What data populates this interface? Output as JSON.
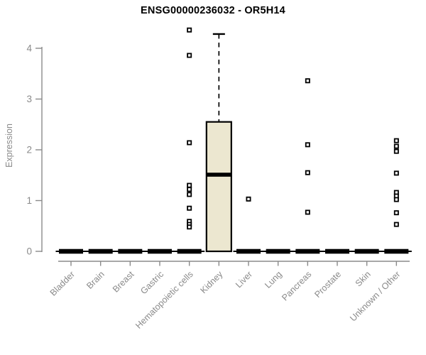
{
  "chart_data": {
    "type": "boxplot",
    "title": "ENSG00000236032 - OR5H14",
    "ylabel": "Expression",
    "xlabel": "",
    "ylim": [
      0,
      4
    ],
    "yticks": [
      0,
      1,
      2,
      3,
      4
    ],
    "grid": false,
    "legend": null,
    "categories": [
      "Bladder",
      "Brain",
      "Breast",
      "Gastric",
      "Hematopoietic cells",
      "Kidney",
      "Liver",
      "Lung",
      "Pancreas",
      "Prostate",
      "Skin",
      "Unknown / Other"
    ],
    "series": [
      {
        "category": "Bladder",
        "low": 0,
        "q1": 0,
        "median": 0,
        "q3": 0,
        "high": 0,
        "outliers": []
      },
      {
        "category": "Brain",
        "low": 0,
        "q1": 0,
        "median": 0,
        "q3": 0,
        "high": 0,
        "outliers": []
      },
      {
        "category": "Breast",
        "low": 0,
        "q1": 0,
        "median": 0,
        "q3": 0,
        "high": 0,
        "outliers": []
      },
      {
        "category": "Gastric",
        "low": 0,
        "q1": 0,
        "median": 0,
        "q3": 0,
        "high": 0,
        "outliers": []
      },
      {
        "category": "Hematopoietic cells",
        "low": 0,
        "q1": 0,
        "median": 0,
        "q3": 0,
        "high": 0,
        "outliers": [
          4.36,
          3.86,
          2.14,
          1.3,
          1.22,
          1.12,
          0.85,
          0.59,
          0.53,
          0.48
        ]
      },
      {
        "category": "Kidney",
        "low": 0,
        "q1": 0,
        "median": 1.51,
        "q3": 2.55,
        "high": 4.28,
        "outliers": []
      },
      {
        "category": "Liver",
        "low": 0,
        "q1": 0,
        "median": 0,
        "q3": 0,
        "high": 0,
        "outliers": [
          1.03
        ]
      },
      {
        "category": "Lung",
        "low": 0,
        "q1": 0,
        "median": 0,
        "q3": 0,
        "high": 0,
        "outliers": []
      },
      {
        "category": "Pancreas",
        "low": 0,
        "q1": 0,
        "median": 0,
        "q3": 0,
        "high": 0,
        "outliers": [
          3.36,
          2.1,
          1.55,
          0.77
        ]
      },
      {
        "category": "Prostate",
        "low": 0,
        "q1": 0,
        "median": 0,
        "q3": 0,
        "high": 0,
        "outliers": []
      },
      {
        "category": "Skin",
        "low": 0,
        "q1": 0,
        "median": 0,
        "q3": 0,
        "high": 0,
        "outliers": []
      },
      {
        "category": "Unknown / Other",
        "low": 0,
        "q1": 0,
        "median": 0,
        "q3": 0,
        "high": 0,
        "outliers": [
          2.18,
          2.07,
          1.97,
          1.54,
          1.16,
          1.09,
          1.02,
          0.76,
          0.53
        ]
      }
    ],
    "colors": {
      "box_fill": "#ece7d0",
      "box_stroke": "#000000",
      "median": "#000000",
      "whisker": "#000000",
      "outlier_fill": "#ffffff",
      "outlier_stroke": "#000000",
      "axis": "#8a8a8a",
      "tick_label": "#8a8a8a",
      "title": "#000000"
    }
  }
}
